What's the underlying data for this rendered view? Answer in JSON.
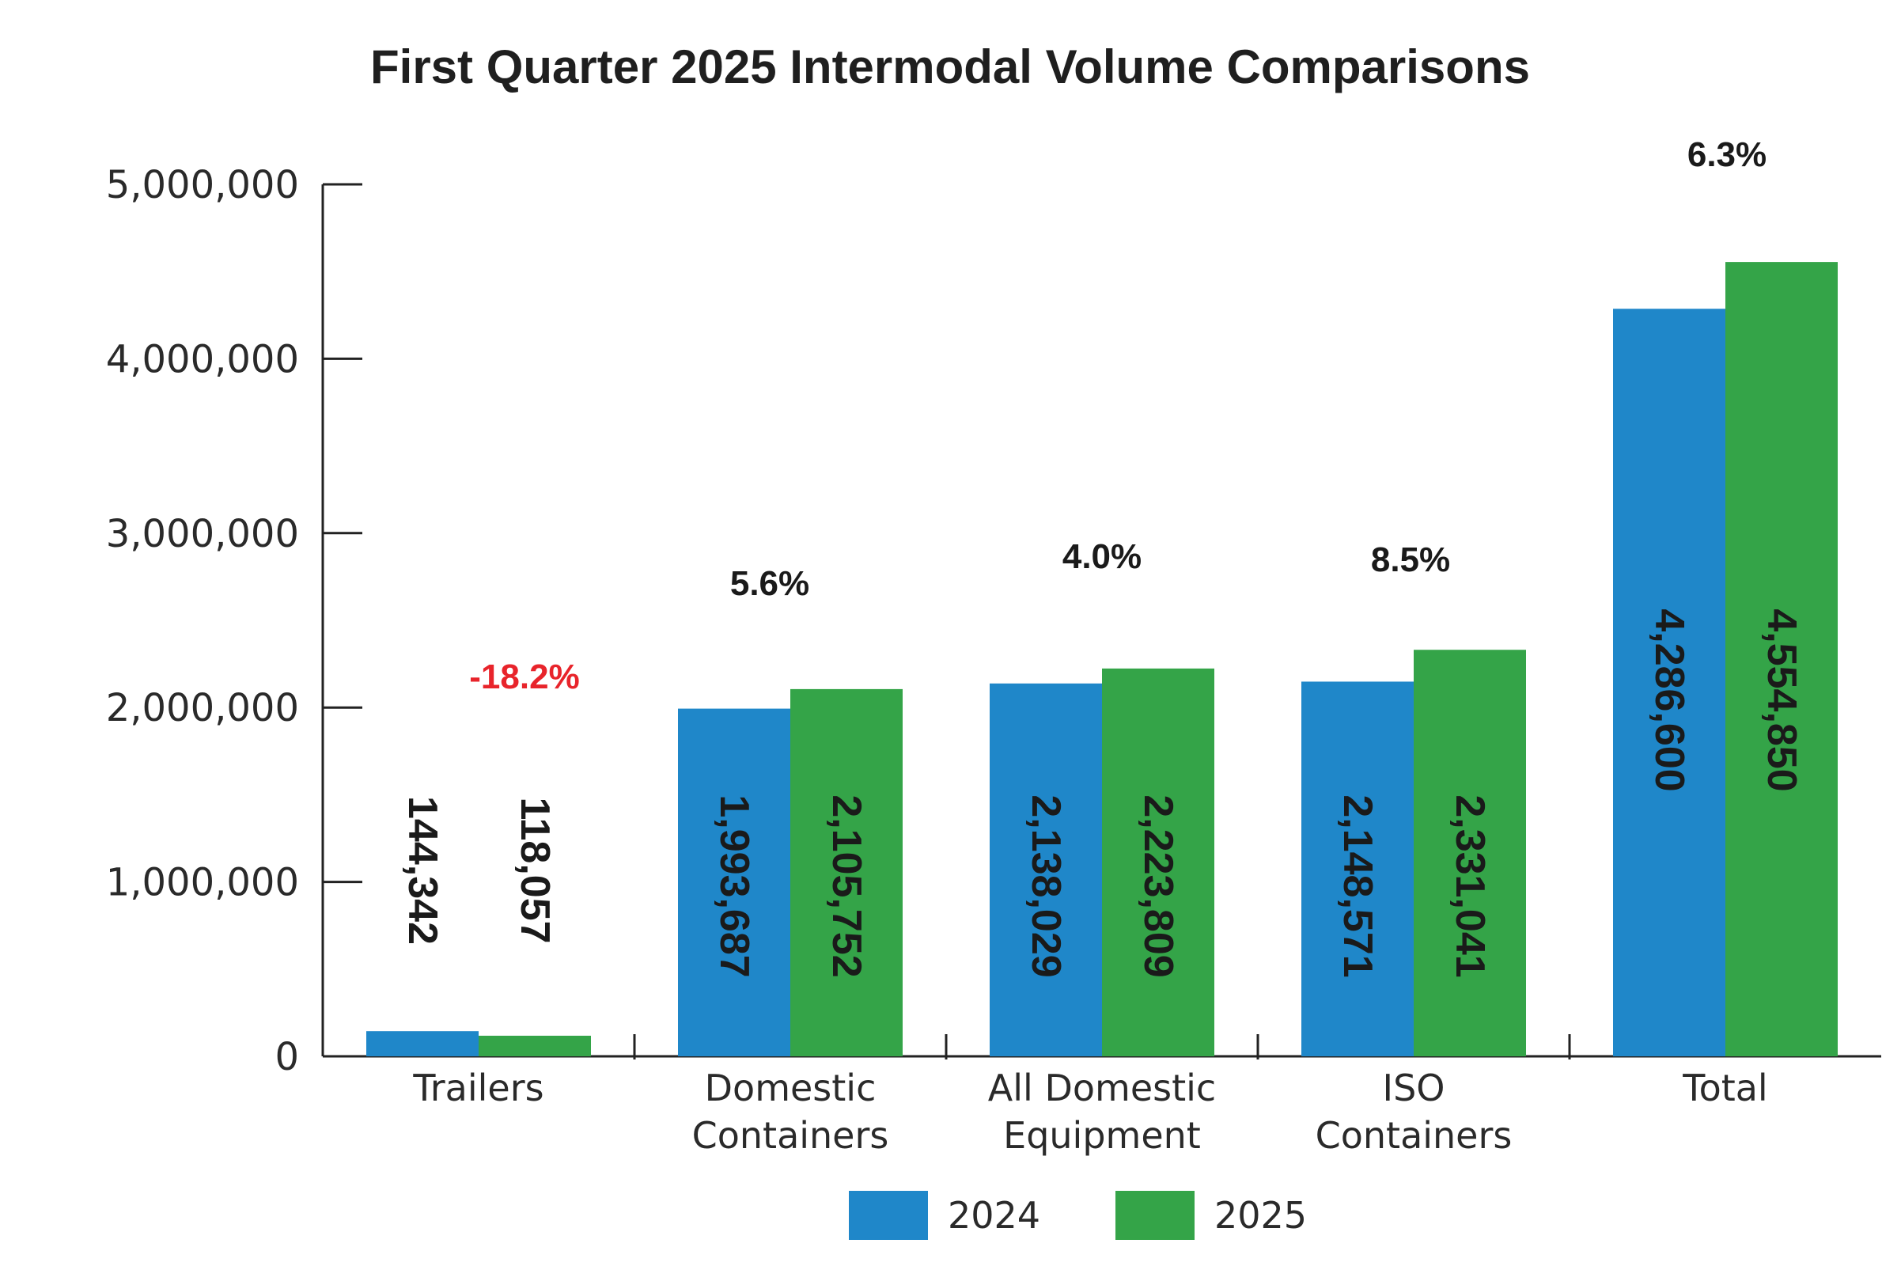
{
  "chart_data": {
    "type": "bar",
    "title": "First Quarter 2025 Intermodal Volume Comparisons",
    "categories": [
      [
        "Trailers"
      ],
      [
        "Domestic",
        "Containers"
      ],
      [
        "All Domestic",
        "Equipment"
      ],
      [
        "ISO",
        "Containers"
      ],
      [
        "Total"
      ]
    ],
    "series": [
      {
        "name": "2024",
        "color": "#1f87c9",
        "values": [
          144342,
          1993687,
          2138029,
          2148571,
          4286600
        ],
        "labels": [
          "144,342",
          "1,993,687",
          "2,138,029",
          "2,148,571",
          "4,286,600"
        ]
      },
      {
        "name": "2025",
        "color": "#34a448",
        "values": [
          118057,
          2105752,
          2223809,
          2331041,
          4554850
        ],
        "labels": [
          "118,057",
          "2,105,752",
          "2,223,809",
          "2,331,041",
          "4,554,850"
        ]
      }
    ],
    "changes": [
      {
        "text": "-18.2%",
        "color": "#e8242b"
      },
      {
        "text": "5.6%",
        "color": "#1a1a1a"
      },
      {
        "text": "4.0%",
        "color": "#1a1a1a"
      },
      {
        "text": "8.5%",
        "color": "#1a1a1a"
      },
      {
        "text": "6.3%",
        "color": "#1a1a1a"
      }
    ],
    "ylim": [
      0,
      5000000
    ],
    "yticks": [
      0,
      1000000,
      2000000,
      3000000,
      4000000,
      5000000
    ],
    "ytick_labels": [
      "0",
      "1,000,000",
      "2,000,000",
      "3,000,000",
      "4,000,000",
      "5,000,000"
    ],
    "xlabel": "",
    "ylabel": "",
    "grid": false,
    "legend": "bottom-center"
  }
}
